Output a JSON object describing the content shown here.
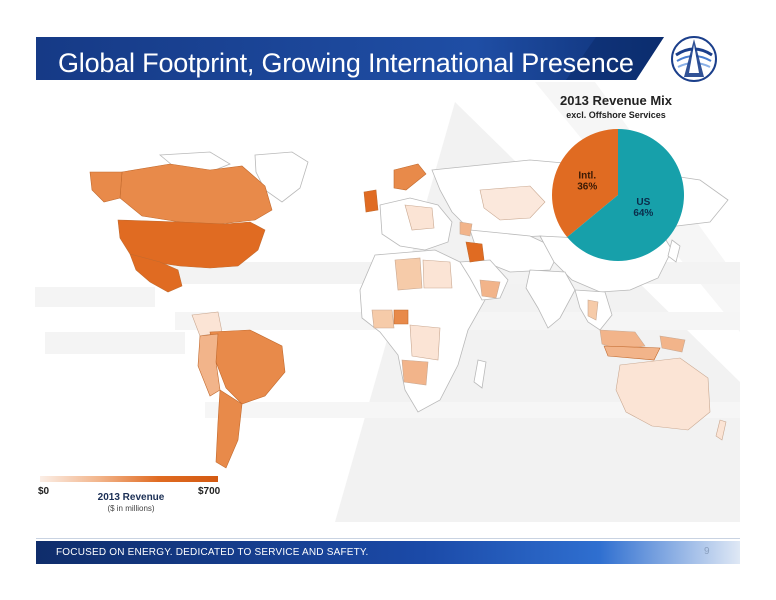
{
  "header": {
    "title": "Global Footprint, Growing International Presence"
  },
  "pie": {
    "title": "2013 Revenue Mix",
    "subtitle": "excl. Offshore Services",
    "slices": [
      {
        "label": "Intl.",
        "pct_label": "36%",
        "value": 36,
        "color": "#e06b22"
      },
      {
        "label": "US",
        "pct_label": "64%",
        "value": 64,
        "color": "#17a0aa"
      }
    ]
  },
  "legend": {
    "min_label": "$0",
    "max_label": "$700",
    "title": "2013 Revenue",
    "subtitle": "($ in millions)"
  },
  "footer": {
    "tagline": "FOCUSED ON ENERGY. DEDICATED TO SERVICE AND SAFETY.",
    "page_number": "9"
  },
  "colors": {
    "title_band": "#1b3f8b",
    "high_revenue": "#e06b22",
    "medium_revenue": "#f2b48a",
    "low_revenue": "#fbe4d5",
    "no_revenue": "#ffffff"
  }
}
